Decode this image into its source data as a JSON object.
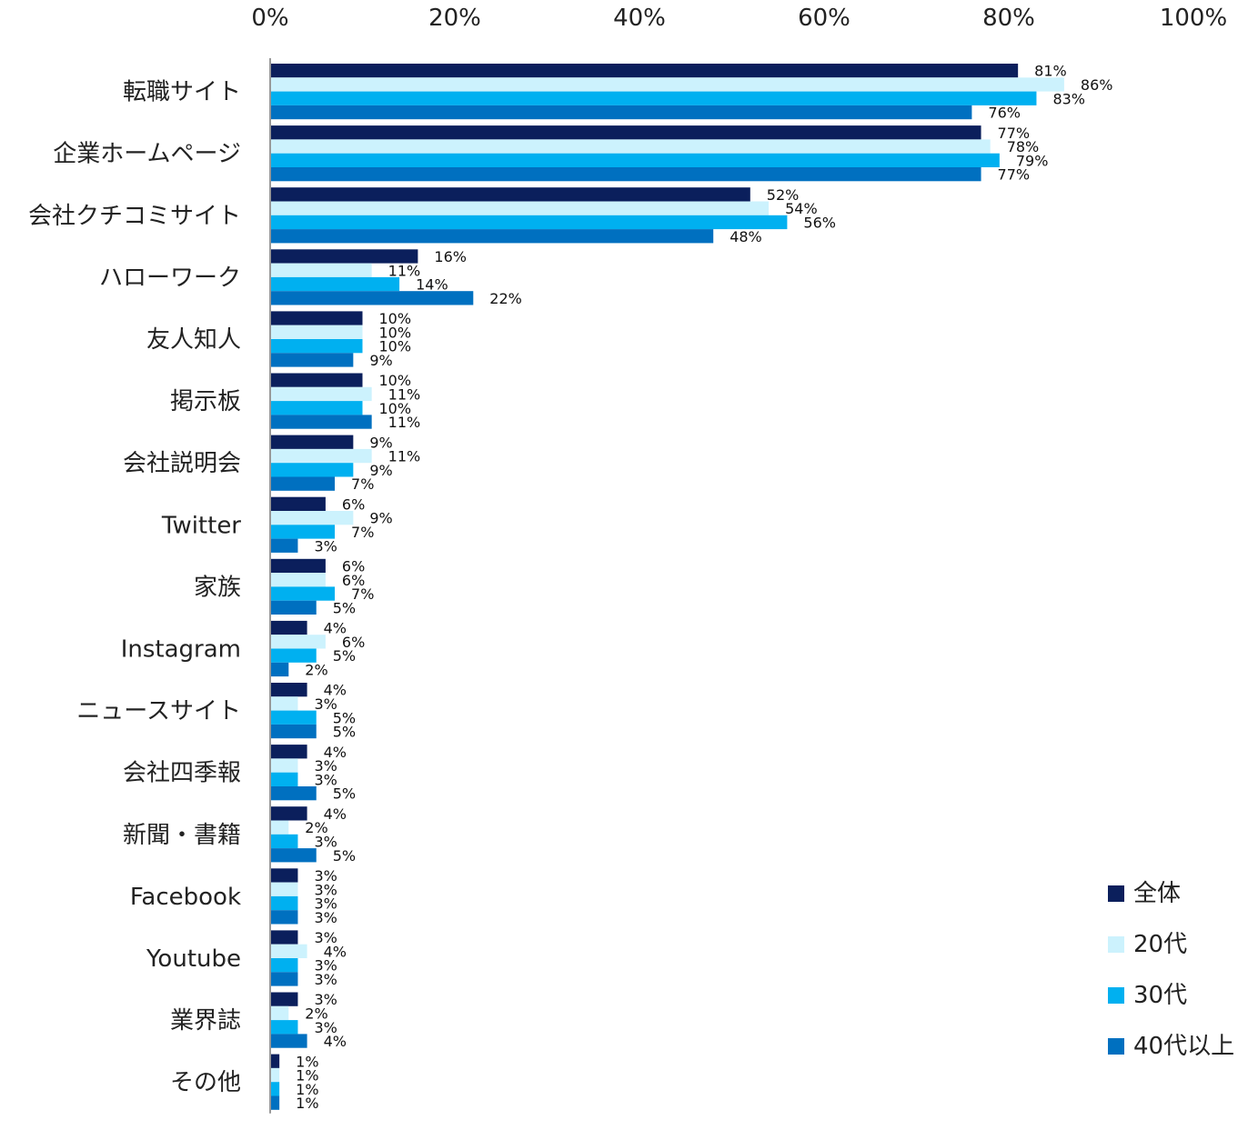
{
  "chart_data": {
    "type": "bar",
    "orientation": "horizontal",
    "title": "",
    "xlabel": "",
    "ylabel": "",
    "xlim": [
      0,
      100
    ],
    "x_ticks": [
      "0%",
      "20%",
      "40%",
      "60%",
      "80%",
      "100%"
    ],
    "x_axis_position": "top",
    "grid": false,
    "legend_position": "bottom-right",
    "value_suffix": "%",
    "categories": [
      "転職サイト",
      "企業ホームページ",
      "会社クチコミサイト",
      "ハローワーク",
      "友人知人",
      "掲示板",
      "会社説明会",
      "Twitter",
      "家族",
      "Instagram",
      "ニュースサイト",
      "会社四季報",
      "新聞・書籍",
      "Facebook",
      "Youtube",
      "業界誌",
      "その他"
    ],
    "series": [
      {
        "name": "全体",
        "color": "#0b1f5c",
        "values": [
          81,
          77,
          52,
          16,
          10,
          10,
          9,
          6,
          6,
          4,
          4,
          4,
          4,
          3,
          3,
          3,
          1
        ]
      },
      {
        "name": "20代",
        "color": "#ccf2fd",
        "values": [
          86,
          78,
          54,
          11,
          10,
          11,
          11,
          9,
          6,
          6,
          3,
          3,
          2,
          3,
          4,
          2,
          1
        ]
      },
      {
        "name": "30代",
        "color": "#00b0f0",
        "values": [
          83,
          79,
          56,
          14,
          10,
          10,
          9,
          7,
          7,
          5,
          5,
          3,
          3,
          3,
          3,
          3,
          1
        ]
      },
      {
        "name": "40代以上",
        "color": "#0070c0",
        "values": [
          76,
          77,
          48,
          22,
          9,
          11,
          7,
          3,
          5,
          2,
          5,
          5,
          5,
          3,
          3,
          4,
          1
        ]
      }
    ]
  }
}
